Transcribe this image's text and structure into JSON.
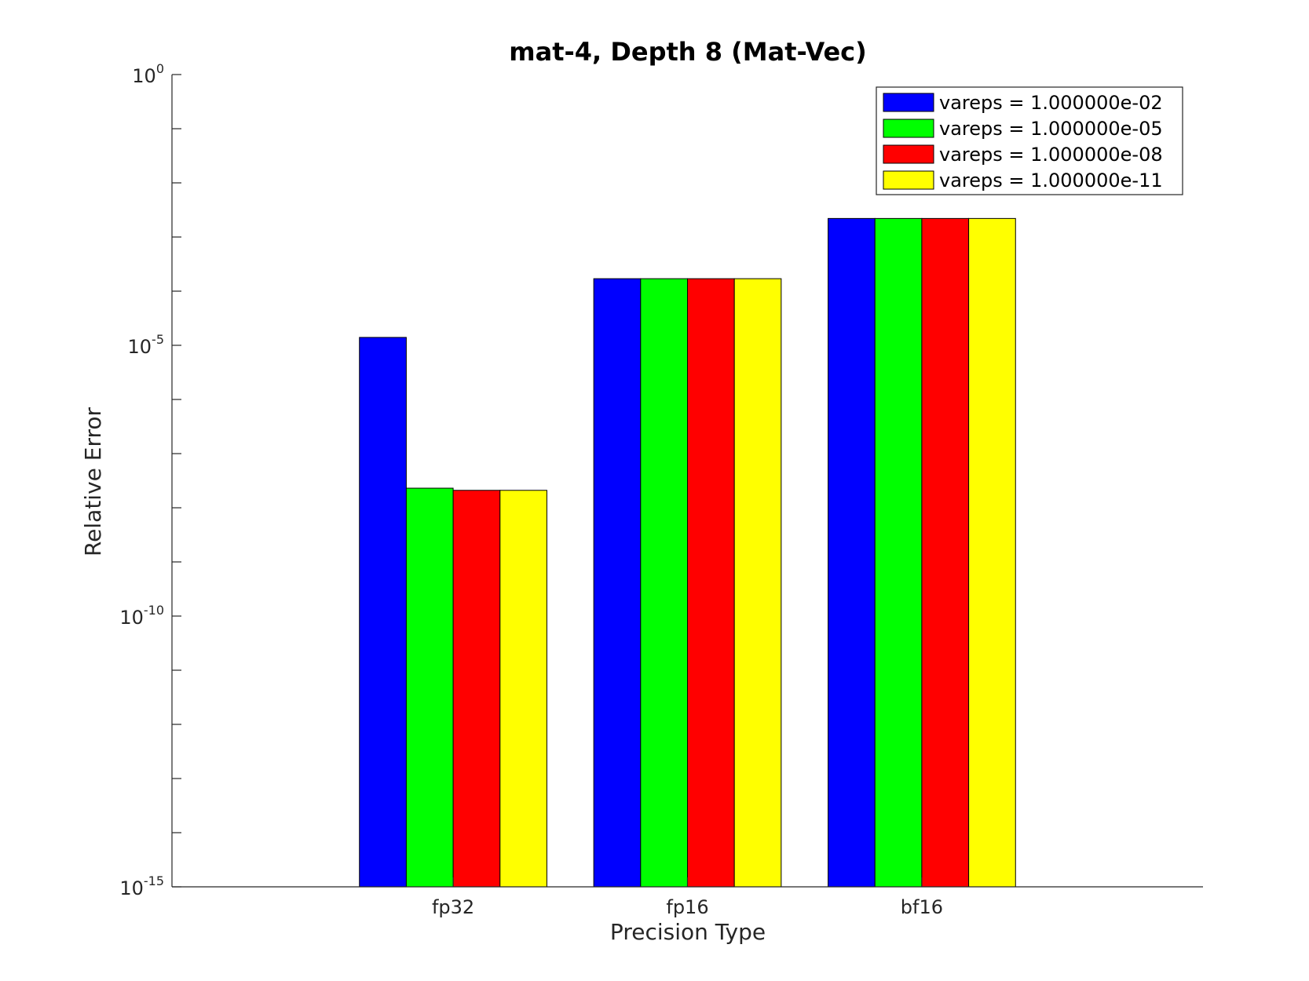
{
  "chart_data": {
    "type": "bar",
    "title": "mat-4, Depth 8 (Mat-Vec)",
    "xlabel": "Precision Type",
    "ylabel": "Relative Error",
    "yscale": "log",
    "ylim": [
      1e-15,
      1
    ],
    "ytick_labels": [
      {
        "base": "10",
        "exp": "0",
        "value": 1
      },
      {
        "base": "10",
        "exp": "-5",
        "value": 1e-05
      },
      {
        "base": "10",
        "exp": "-10",
        "value": 1e-10
      },
      {
        "base": "10",
        "exp": "-15",
        "value": 1e-15
      }
    ],
    "categories": [
      "fp32",
      "fp16",
      "bf16"
    ],
    "series": [
      {
        "name": "vareps = 1.000000e-02",
        "color": "#0000ff",
        "values": [
          1.4e-05,
          0.00017,
          0.0022
        ]
      },
      {
        "name": "vareps = 1.000000e-05",
        "color": "#00ff00",
        "values": [
          2.3e-08,
          0.00017,
          0.0022
        ]
      },
      {
        "name": "vareps = 1.000000e-08",
        "color": "#ff0000",
        "values": [
          2.1e-08,
          0.00017,
          0.0022
        ]
      },
      {
        "name": "vareps = 1.000000e-11",
        "color": "#ffff00",
        "values": [
          2.1e-08,
          0.00017,
          0.0022
        ]
      }
    ],
    "legend_position": "top-right",
    "grid": false
  }
}
